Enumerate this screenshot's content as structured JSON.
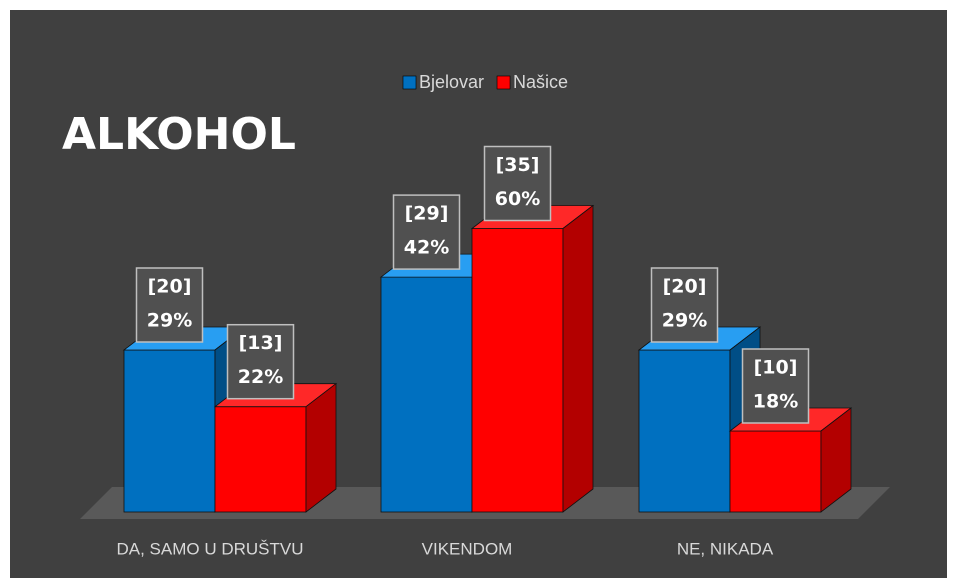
{
  "chart_data": {
    "type": "bar3d",
    "title": "ALKOHOL",
    "categories": [
      "DA, SAMO U DRUŠTVU",
      "VIKENDOM",
      "NE, NIKADA"
    ],
    "series": [
      {
        "name": "Bjelovar",
        "color": "#0070c0",
        "values": [
          20,
          29,
          20
        ],
        "value_labels": [
          "[20]",
          "[29]",
          "[20]"
        ],
        "share_labels": [
          "29%",
          "42%",
          "29%"
        ]
      },
      {
        "name": "Našice",
        "color": "#ff0000",
        "values": [
          13,
          35,
          10
        ],
        "value_labels": [
          "[13]",
          "[35]",
          "[10]"
        ],
        "share_labels": [
          "22%",
          "60%",
          "18%"
        ]
      }
    ],
    "ylim": [
      0,
      40
    ],
    "legend": "top"
  }
}
